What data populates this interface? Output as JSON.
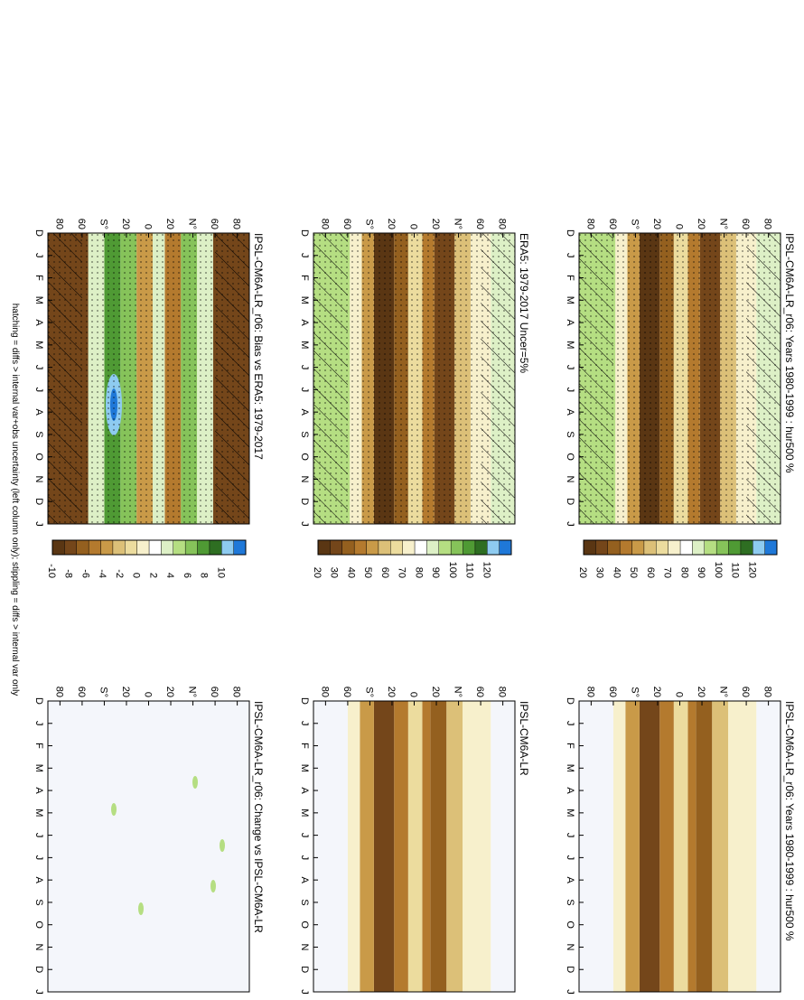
{
  "footnote": "hatching = diffs > internal var+obs uncertainty (left column only); stippling = diffs > internal var only",
  "colors": {
    "abs_scale": [
      "#1f78d8",
      "#8ecbf0",
      "#2e6e22",
      "#4f9a34",
      "#86c35a",
      "#b5de82",
      "#ddf0c6",
      "#ffffff",
      "#f7f0cc",
      "#ecdc9e",
      "#dcc078",
      "#c99a48",
      "#b47a2e",
      "#94601f",
      "#74461a",
      "#5a3613"
    ],
    "diff_scale": [
      "#1f78d8",
      "#8ecbf0",
      "#2e6e22",
      "#4f9a34",
      "#86c35a",
      "#b5de82",
      "#ddf0c6",
      "#ffffff",
      "#f7f0cc",
      "#ecdc9e",
      "#dcc078",
      "#c99a48",
      "#b47a2e",
      "#94601f",
      "#74461a",
      "#5a3613"
    ],
    "background": "#f4f6fb"
  },
  "colorbars": {
    "abs_labels": [
      "120",
      "110",
      "100",
      "90",
      "80",
      "70",
      "60",
      "50",
      "40",
      "30",
      "20"
    ],
    "diff_labels": [
      "10",
      "8",
      "6",
      "4",
      "2",
      "0",
      "-2",
      "-4",
      "-6",
      "-8",
      "-10"
    ]
  },
  "axes": {
    "month_labels": [
      "D",
      "J",
      "F",
      "M",
      "A",
      "M",
      "J",
      "J",
      "A",
      "S",
      "O",
      "N",
      "D",
      "J"
    ],
    "lat_labels": [
      "80",
      "60",
      "N°",
      "20",
      "0",
      "20",
      "S°",
      "60",
      "80"
    ]
  },
  "panels": [
    {
      "id": "p1",
      "title": "IPSL-CM6A-LR_r06: Years 1980-1999 : hur500 %",
      "kind": "abs",
      "hatch": true,
      "stipple": true
    },
    {
      "id": "p2",
      "title": "IPSL-CM6A-LR_r06: Years 1980-1999 : hur500 %",
      "kind": "abs",
      "hatch": false,
      "stipple": false
    },
    {
      "id": "p3",
      "title": "ERA5: 1979-2017 Uncer=5%",
      "kind": "abs",
      "hatch": true,
      "stipple": true
    },
    {
      "id": "p4",
      "title": "IPSL-CM6A-LR",
      "kind": "abs",
      "hatch": false,
      "stipple": false
    },
    {
      "id": "p5",
      "title": "IPSL-CM6A-LR_r06: Bias vs ERA5: 1979-2017",
      "kind": "diff",
      "hatch": true,
      "stipple": true
    },
    {
      "id": "p6",
      "title": "IPSL-CM6A-LR_r06: Change vs IPSL-CM6A-LR",
      "kind": "diff",
      "hatch": false,
      "stipple": false
    }
  ],
  "chart_data": [
    {
      "type": "heatmap",
      "title": "IPSL-CM6A-LR_r06: Years 1980-1999 : hur500 %",
      "xlabel": "",
      "ylabel": "",
      "x": [
        "J",
        "F",
        "M",
        "A",
        "M",
        "J",
        "J",
        "A",
        "S",
        "O",
        "N",
        "D"
      ],
      "y_range": [
        -90,
        90
      ],
      "colorbar_levels": [
        20,
        30,
        40,
        50,
        60,
        70,
        80,
        90,
        100,
        110,
        120
      ]
    },
    {
      "type": "heatmap",
      "title": "IPSL-CM6A-LR_r06: Years 1980-1999 : hur500 %",
      "xlabel": "",
      "ylabel": "",
      "x": [
        "J",
        "F",
        "M",
        "A",
        "M",
        "J",
        "J",
        "A",
        "S",
        "O",
        "N",
        "D"
      ],
      "y_range": [
        -90,
        90
      ],
      "colorbar_levels": [
        20,
        30,
        40,
        50,
        60,
        70,
        80,
        90,
        100,
        110,
        120
      ]
    },
    {
      "type": "heatmap",
      "title": "ERA5: 1979-2017 Uncer=5%",
      "xlabel": "",
      "ylabel": "",
      "x": [
        "J",
        "F",
        "M",
        "A",
        "M",
        "J",
        "J",
        "A",
        "S",
        "O",
        "N",
        "D"
      ],
      "y_range": [
        -90,
        90
      ],
      "colorbar_levels": [
        20,
        30,
        40,
        50,
        60,
        70,
        80,
        90,
        100,
        110,
        120
      ]
    },
    {
      "type": "heatmap",
      "title": "IPSL-CM6A-LR",
      "xlabel": "",
      "ylabel": "",
      "x": [
        "J",
        "F",
        "M",
        "A",
        "M",
        "J",
        "J",
        "A",
        "S",
        "O",
        "N",
        "D"
      ],
      "y_range": [
        -90,
        90
      ],
      "colorbar_levels": [
        20,
        30,
        40,
        50,
        60,
        70,
        80,
        90,
        100,
        110,
        120
      ]
    },
    {
      "type": "heatmap",
      "title": "IPSL-CM6A-LR_r06: Bias vs ERA5: 1979-2017",
      "xlabel": "",
      "ylabel": "",
      "x": [
        "J",
        "F",
        "M",
        "A",
        "M",
        "J",
        "J",
        "A",
        "S",
        "O",
        "N",
        "D"
      ],
      "y_range": [
        -90,
        90
      ],
      "colorbar_levels": [
        -10,
        -8,
        -6,
        -4,
        -2,
        0,
        2,
        4,
        6,
        8,
        10
      ]
    },
    {
      "type": "heatmap",
      "title": "IPSL-CM6A-LR_r06: Change vs IPSL-CM6A-LR",
      "xlabel": "",
      "ylabel": "",
      "x": [
        "J",
        "F",
        "M",
        "A",
        "M",
        "J",
        "J",
        "A",
        "S",
        "O",
        "N",
        "D"
      ],
      "y_range": [
        -90,
        90
      ],
      "colorbar_levels": [
        -10,
        -8,
        -6,
        -4,
        -2,
        0,
        2,
        4,
        6,
        8,
        10
      ]
    }
  ]
}
